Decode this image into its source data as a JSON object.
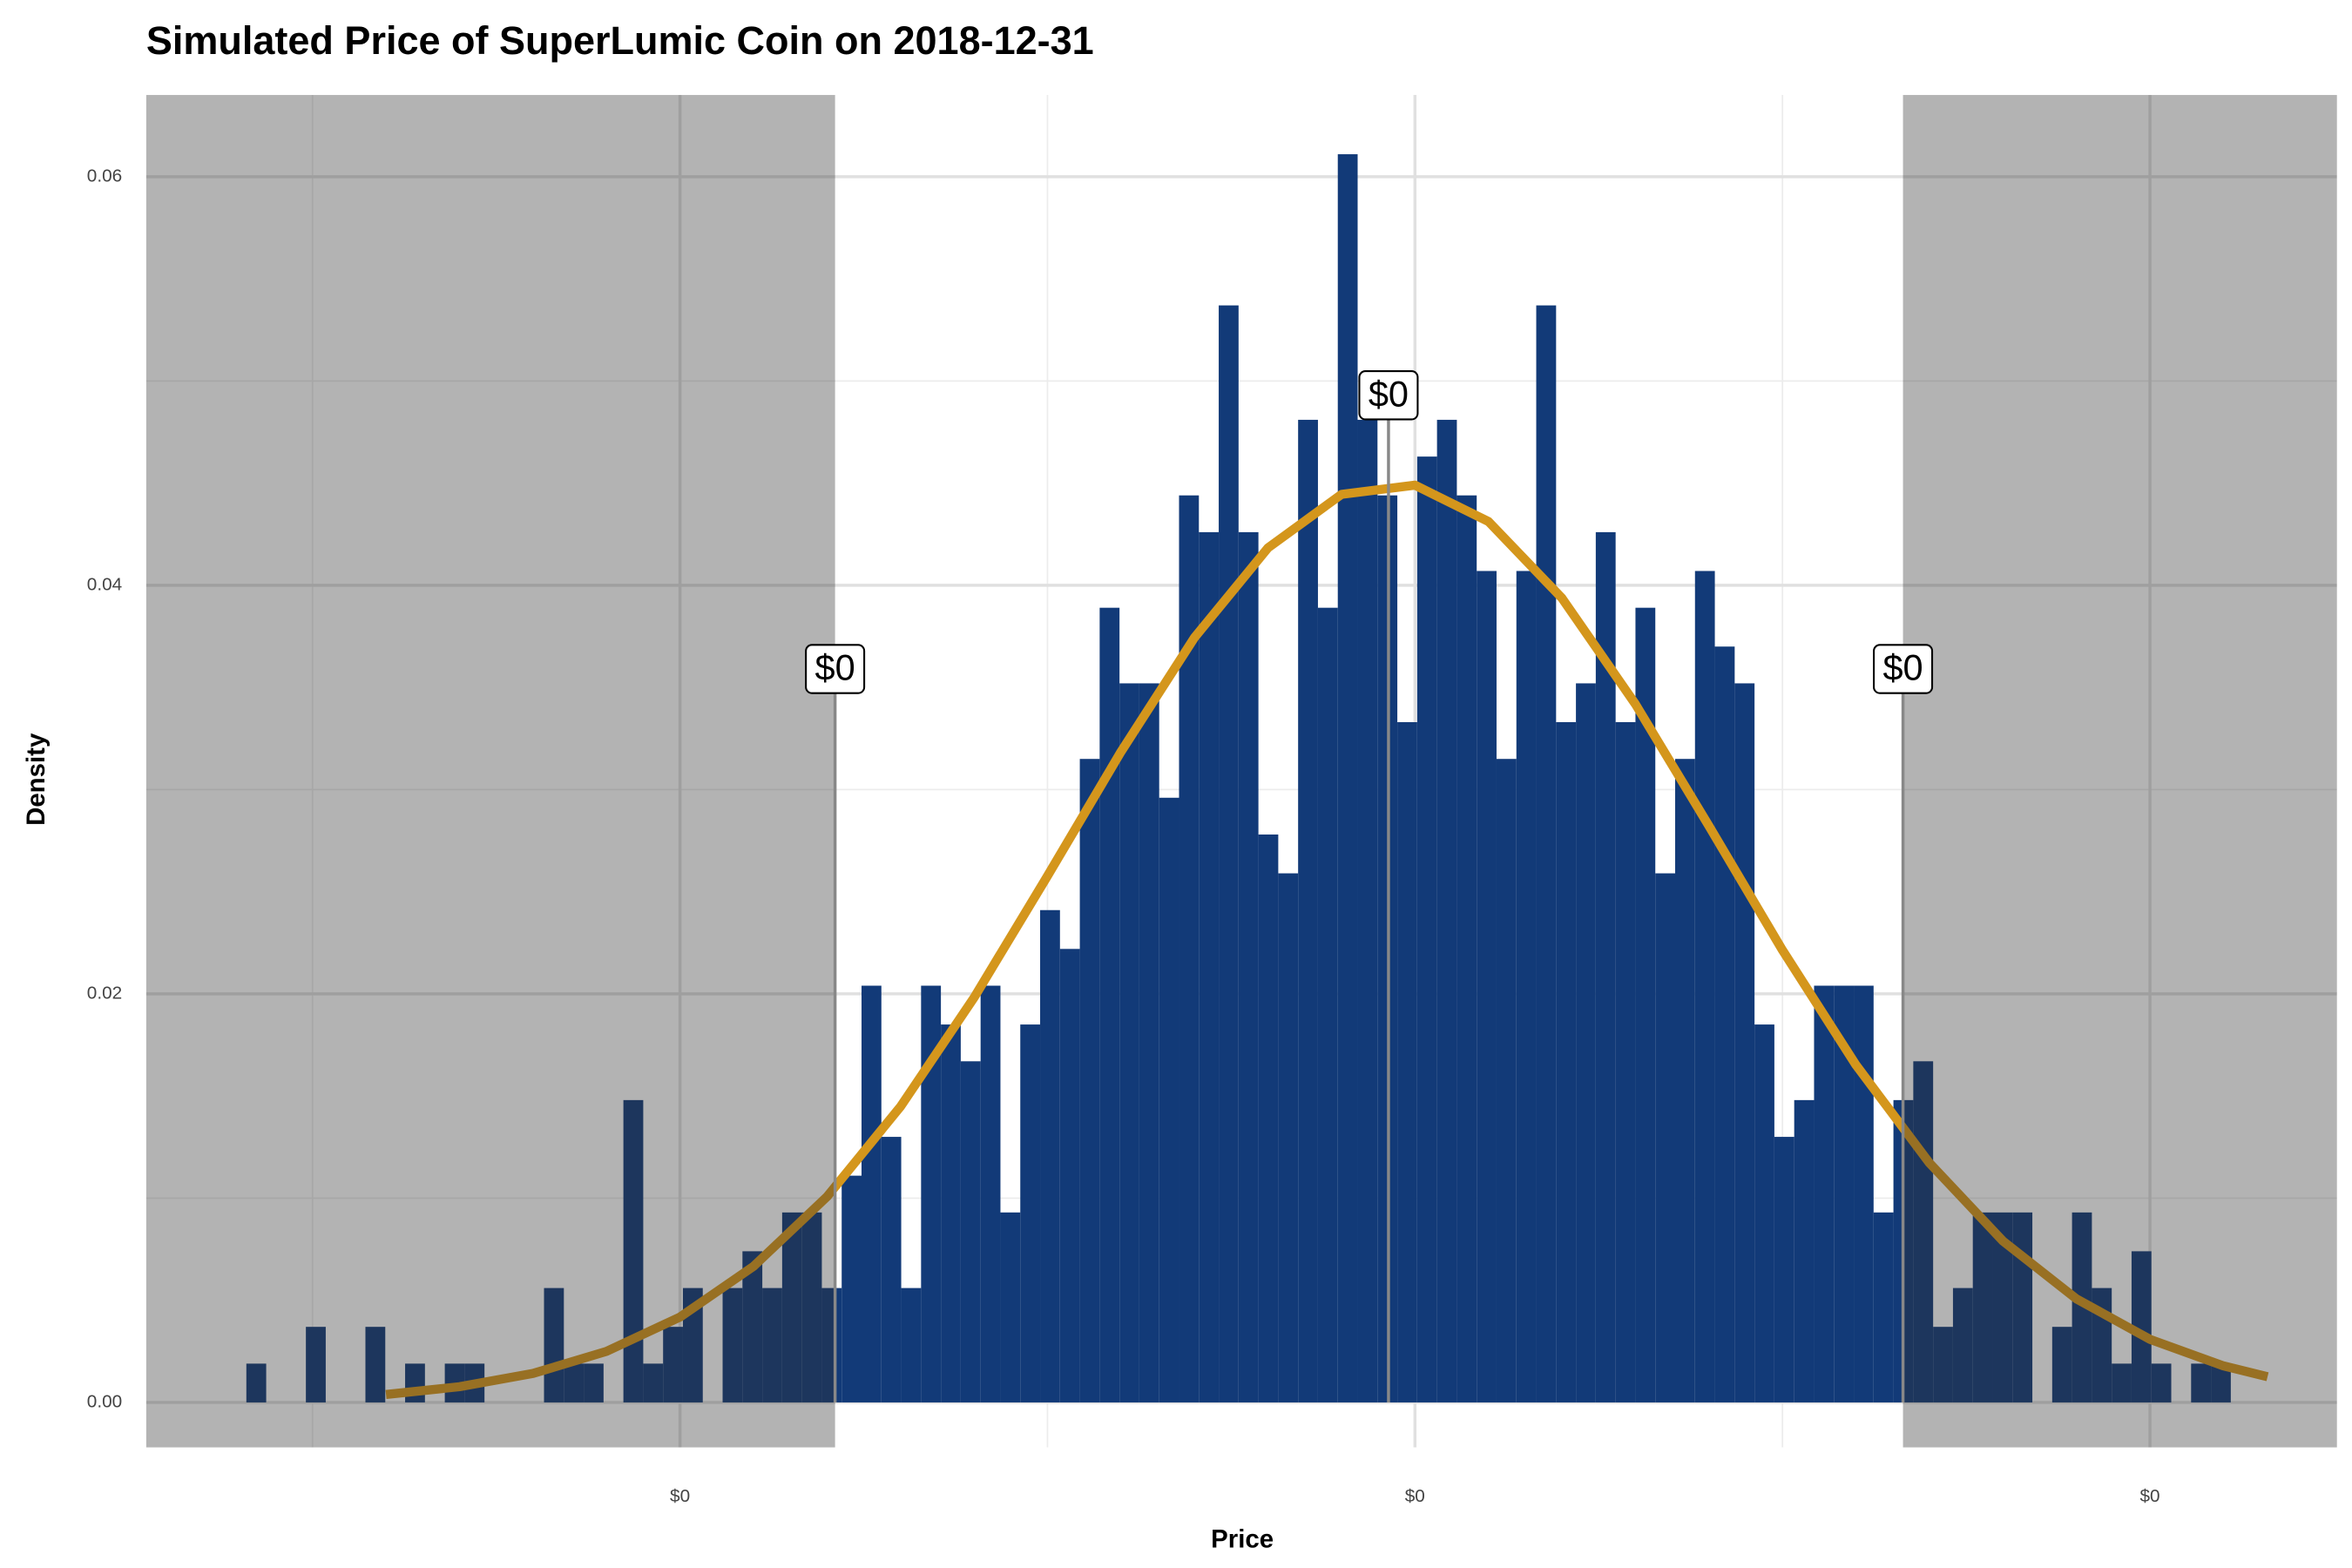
{
  "chart_data": {
    "type": "histogram",
    "title": "Simulated Price of SuperLumic Coin on 2018-12-31",
    "x_label": "Price",
    "y_label": "Density",
    "color": "#123a78",
    "bins": [
      0.041,
      0.0437,
      0.0464,
      0.0491,
      0.0518,
      0.0545,
      0.0572,
      0.0599,
      0.0626,
      0.0653,
      0.068,
      0.0707,
      0.0734,
      0.0761,
      0.0788,
      0.0815,
      0.0842,
      0.0869,
      0.0896,
      0.0923,
      0.095,
      0.0977,
      0.1004,
      0.1031,
      0.1058,
      0.1085,
      0.1112,
      0.1139,
      0.1166,
      0.1193,
      0.122,
      0.1247,
      0.1274,
      0.1301,
      0.1328,
      0.1355,
      0.1382,
      0.1409,
      0.1436,
      0.1463,
      0.149,
      0.1517,
      0.1544,
      0.1571,
      0.1598,
      0.1625,
      0.1652,
      0.1679,
      0.1706,
      0.1733,
      0.176,
      0.1787,
      0.1814,
      0.1841,
      0.1868,
      0.1895,
      0.1922,
      0.1949,
      0.1976,
      0.2003,
      0.203,
      0.2057,
      0.2084,
      0.2111,
      0.2138,
      0.2165,
      0.2192,
      0.2219,
      0.2246,
      0.2273,
      0.23,
      0.2327,
      0.2354,
      0.2381,
      0.2408,
      0.2435,
      0.2462,
      0.2489,
      0.2516,
      0.2543,
      0.257,
      0.2597,
      0.2624,
      0.2651,
      0.2678,
      0.2705,
      0.2732,
      0.2759,
      0.2786,
      0.2813,
      0.284,
      0.2867,
      0.2894,
      0.2921,
      0.2948,
      0.2975,
      0.3002,
      0.3029,
      0.3056,
      0.3083,
      0.311
    ],
    "values": [
      0.0019,
      0,
      0,
      0.0037,
      0,
      0,
      0.0037,
      0,
      0.0019,
      0,
      0.0019,
      0.0019,
      0,
      0,
      0,
      0.0056,
      0.0019,
      0.0019,
      0,
      0.0148,
      0.0019,
      0.0037,
      0.0056,
      0,
      0.0056,
      0.0074,
      0.0056,
      0.0093,
      0.0093,
      0.0056,
      0.0111,
      0.0204,
      0.013,
      0.0056,
      0.0204,
      0.0185,
      0.0167,
      0.0204,
      0.0093,
      0.0185,
      0.0241,
      0.0222,
      0.0315,
      0.0389,
      0.0352,
      0.0352,
      0.0296,
      0.0444,
      0.0426,
      0.0537,
      0.0426,
      0.0278,
      0.0259,
      0.0481,
      0.0389,
      0.0611,
      0.0481,
      0.0444,
      0.0333,
      0.0463,
      0.0481,
      0.0444,
      0.0407,
      0.0315,
      0.0407,
      0.0537,
      0.0333,
      0.0352,
      0.0426,
      0.0333,
      0.0389,
      0.0259,
      0.0315,
      0.0407,
      0.037,
      0.0352,
      0.0185,
      0.013,
      0.0148,
      0.0204,
      0.0204,
      0.0204,
      0.0093,
      0.0148,
      0.0167,
      0.0037,
      0.0056,
      0.0093,
      0.0093,
      0.0093,
      0,
      0.0037,
      0.0093,
      0.0056,
      0.0019,
      0.0074,
      0.0019,
      0,
      0.0019,
      0.0019
    ],
    "curve": {
      "color": "#d4961c",
      "x": [
        0.06,
        0.07,
        0.08,
        0.09,
        0.1,
        0.11,
        0.12,
        0.13,
        0.14,
        0.15,
        0.16,
        0.17,
        0.18,
        0.19,
        0.2,
        0.21,
        0.22,
        0.23,
        0.24,
        0.25,
        0.26,
        0.27,
        0.28,
        0.29,
        0.3,
        0.31,
        0.316
      ],
      "values": [
        0.00039,
        0.00077,
        0.00142,
        0.0025,
        0.00418,
        0.00666,
        0.01007,
        0.01448,
        0.01981,
        0.02577,
        0.03185,
        0.03744,
        0.04183,
        0.04445,
        0.0449,
        0.04312,
        0.03937,
        0.03418,
        0.02822,
        0.02214,
        0.01652,
        0.01172,
        0.0079,
        0.00507,
        0.00309,
        0.00179,
        0.00126
      ]
    },
    "annotations": [
      {
        "x": 0.1211,
        "y": 0.0359,
        "label": "$0"
      },
      {
        "x": 0.1964,
        "y": 0.0493,
        "label": "$0"
      },
      {
        "x": 0.2664,
        "y": 0.0359,
        "label": "$0"
      }
    ],
    "shade_outside_annotations": true,
    "shade_color": "#323232",
    "xlim": [
      0.02738,
      0.32544
    ],
    "ylim": [
      -0.0022,
      0.064
    ],
    "xticks": [
      {
        "value": 0.1,
        "label": "$0"
      },
      {
        "value": 0.2,
        "label": "$0"
      },
      {
        "value": 0.3,
        "label": "$0"
      }
    ],
    "x_minor_ticks": [
      0.05,
      0.15,
      0.25
    ],
    "yticks": [
      {
        "value": 0,
        "label": "0.00"
      },
      {
        "value": 0.02,
        "label": "0.02"
      },
      {
        "value": 0.04,
        "label": "0.04"
      },
      {
        "value": 0.06,
        "label": "0.06"
      }
    ],
    "y_minor_ticks": [
      0.01,
      0.03,
      0.05
    ],
    "grid": true
  }
}
